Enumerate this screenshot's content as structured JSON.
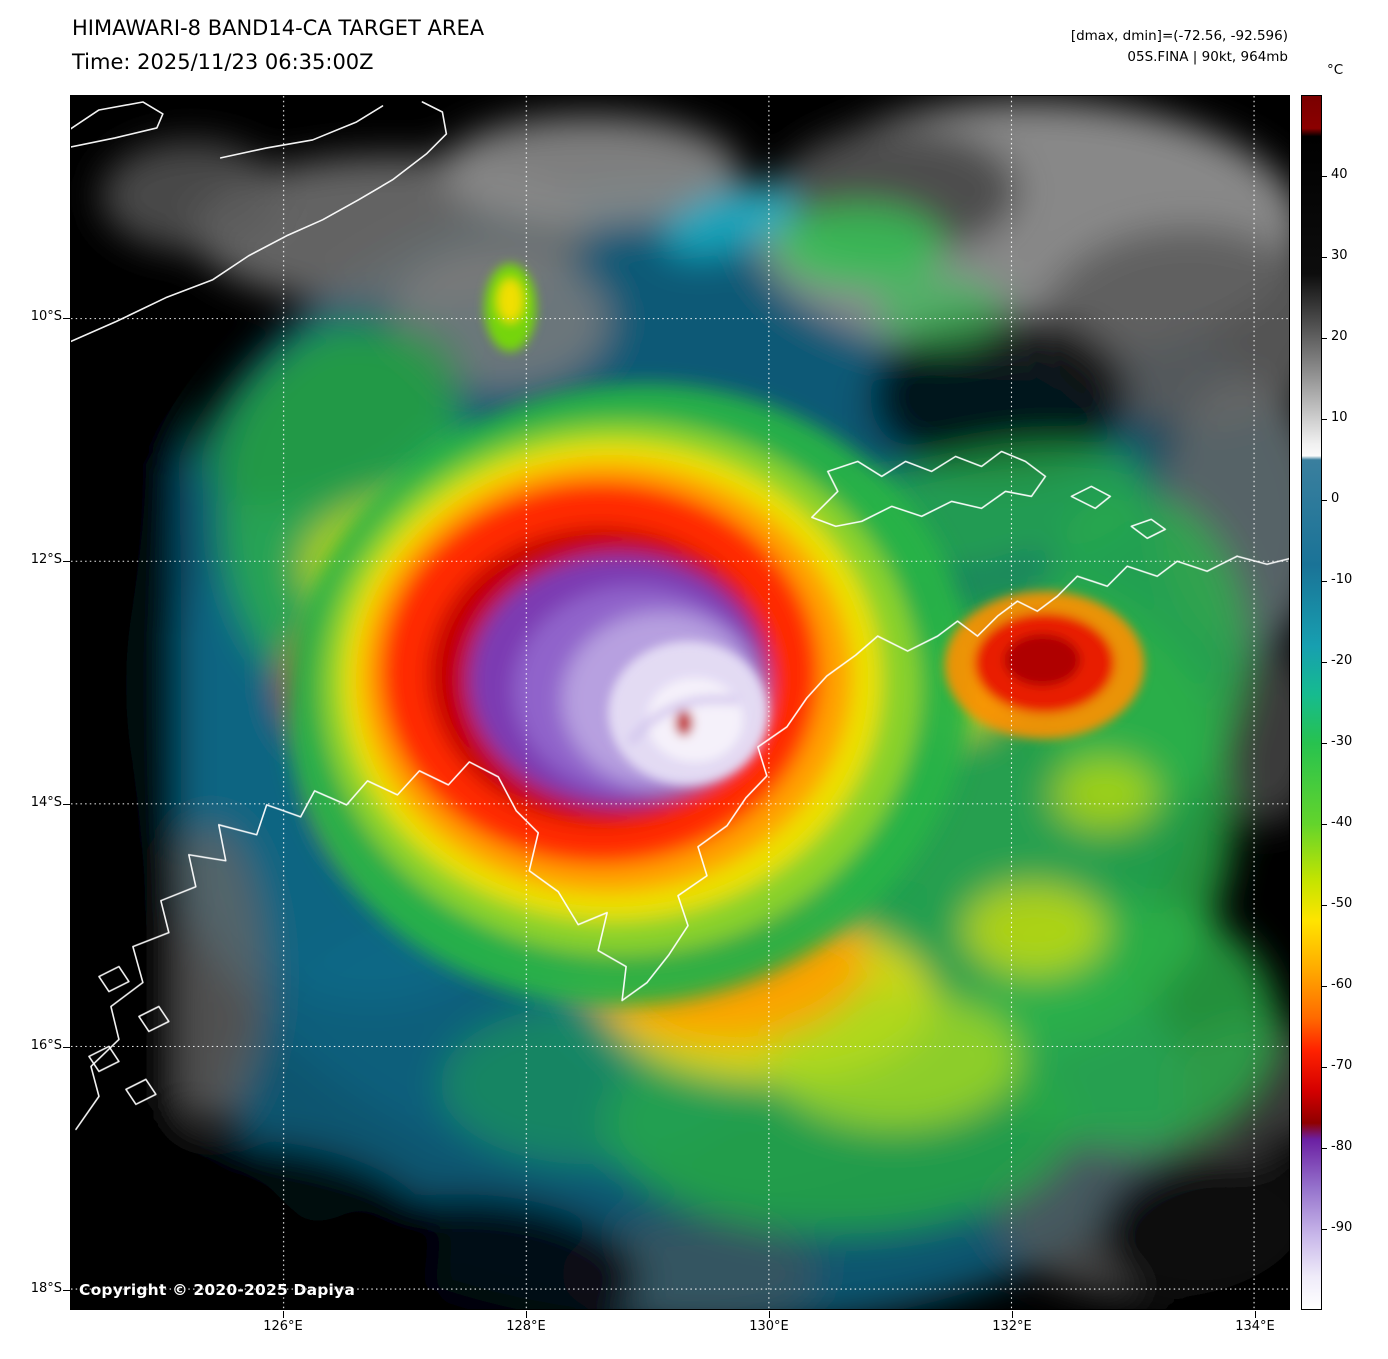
{
  "header": {
    "title": "HIMAWARI-8 BAND14-CA TARGET AREA",
    "time_line": "Time: 2025/11/23 06:35:00Z",
    "drange_line": "[dmax, dmin]=(-72.56, -92.596)",
    "storm_line": "05S.FINA | 90kt, 964mb"
  },
  "map": {
    "copyright": "Copyright © 2020-2025 Dapiya"
  },
  "axes": {
    "lat": [
      {
        "value": 10,
        "label": "10°S"
      },
      {
        "value": 12,
        "label": "12°S"
      },
      {
        "value": 14,
        "label": "14°S"
      },
      {
        "value": 16,
        "label": "16°S"
      },
      {
        "value": 18,
        "label": "18°S"
      }
    ],
    "lon": [
      {
        "value": 126,
        "label": "126°E"
      },
      {
        "value": 128,
        "label": "128°E"
      },
      {
        "value": 130,
        "label": "130°E"
      },
      {
        "value": 132,
        "label": "132°E"
      },
      {
        "value": 134,
        "label": "134°E"
      }
    ]
  },
  "colorbar": {
    "unit": "°C",
    "range": {
      "tmax": 50,
      "tmin": -100
    },
    "ticks": [
      {
        "value": 40,
        "label": "40"
      },
      {
        "value": 30,
        "label": "30"
      },
      {
        "value": 20,
        "label": "20"
      },
      {
        "value": 10,
        "label": "10"
      },
      {
        "value": 0,
        "label": "0"
      },
      {
        "value": -10,
        "label": "-10"
      },
      {
        "value": -20,
        "label": "-20"
      },
      {
        "value": -30,
        "label": "-30"
      },
      {
        "value": -40,
        "label": "-40"
      },
      {
        "value": -50,
        "label": "-50"
      },
      {
        "value": -60,
        "label": "-60"
      },
      {
        "value": -70,
        "label": "-70"
      },
      {
        "value": -80,
        "label": "-80"
      },
      {
        "value": -90,
        "label": "-90"
      }
    ],
    "palette": [
      {
        "t": 50,
        "color": "#7a0000"
      },
      {
        "t": 46,
        "color": "#8b0000"
      },
      {
        "t": 45,
        "color": "#000000"
      },
      {
        "t": 28,
        "color": "#0d0d0d"
      },
      {
        "t": 16,
        "color": "#8c8c8c"
      },
      {
        "t": 7,
        "color": "#f0f0f0"
      },
      {
        "t": 5.5,
        "color": "#fafafa"
      },
      {
        "t": 5,
        "color": "#3a7f9e"
      },
      {
        "t": -8,
        "color": "#1a7397"
      },
      {
        "t": -18,
        "color": "#179fb0"
      },
      {
        "t": -24,
        "color": "#16bb8f"
      },
      {
        "t": -30,
        "color": "#27c24f"
      },
      {
        "t": -40,
        "color": "#63d42c"
      },
      {
        "t": -47,
        "color": "#c4e400"
      },
      {
        "t": -52,
        "color": "#ffe400"
      },
      {
        "t": -58,
        "color": "#ffaa00"
      },
      {
        "t": -64,
        "color": "#ff6a00"
      },
      {
        "t": -68,
        "color": "#ff2200"
      },
      {
        "t": -73,
        "color": "#d40000"
      },
      {
        "t": -77,
        "color": "#8f0000"
      },
      {
        "t": -79,
        "color": "#6b1fa2"
      },
      {
        "t": -85,
        "color": "#9572cc"
      },
      {
        "t": -91,
        "color": "#c9b8ea"
      },
      {
        "t": -96,
        "color": "#efebf9"
      },
      {
        "t": -100,
        "color": "#ffffff"
      }
    ]
  }
}
